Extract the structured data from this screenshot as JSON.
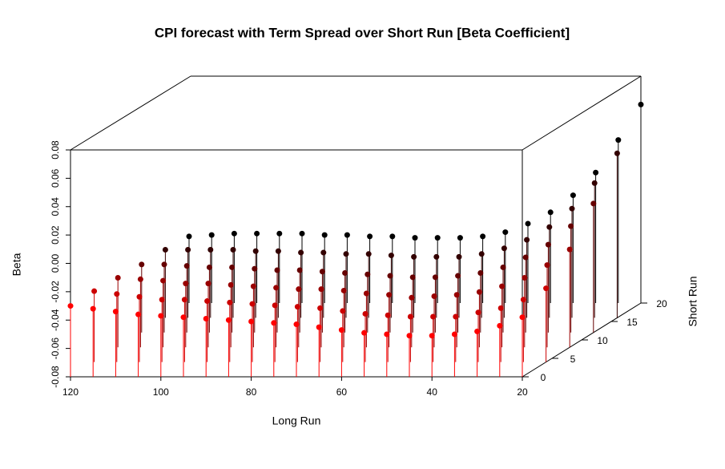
{
  "chart_data": {
    "type": "scatter3d",
    "title": "CPI forecast with Term Spread over Short Run [Beta Coefficient]",
    "xlabel": "Long Run",
    "ylabel": "Short Run",
    "zlabel": "Beta",
    "x": [
      120,
      115,
      110,
      105,
      100,
      95,
      90,
      85,
      80,
      75,
      70,
      65,
      60,
      55,
      50,
      45,
      40,
      35,
      30,
      25,
      20
    ],
    "xlim": [
      120,
      20
    ],
    "xticks": [
      120,
      100,
      80,
      60,
      40,
      20
    ],
    "ylim": [
      0,
      20
    ],
    "yticks": [
      0,
      5,
      10,
      15,
      20
    ],
    "zlim": [
      -0.08,
      0.08
    ],
    "zticks": [
      -0.08,
      -0.06,
      -0.04,
      -0.02,
      {
        "value": 0,
        "label": "0.00"
      },
      0.02,
      0.04,
      0.06,
      0.08
    ],
    "series": [
      {
        "y": 0,
        "color": "#ff0000",
        "values": [
          -0.03,
          -0.032,
          -0.034,
          -0.036,
          -0.037,
          -0.038,
          -0.039,
          -0.04,
          -0.041,
          -0.042,
          -0.043,
          -0.045,
          -0.047,
          -0.049,
          -0.05,
          -0.051,
          -0.051,
          -0.05,
          -0.048,
          -0.044,
          -0.038
        ]
      },
      {
        "y": 4,
        "color": "#cc0000",
        "values": [
          -0.03,
          -0.032,
          -0.034,
          -0.036,
          -0.036,
          -0.037,
          -0.038,
          -0.039,
          -0.04,
          -0.041,
          -0.042,
          -0.044,
          -0.046,
          -0.047,
          -0.048,
          -0.048,
          -0.048,
          -0.045,
          -0.042,
          -0.036,
          -0.028
        ]
      },
      {
        "y": 8,
        "color": "#990000",
        "values": [
          -0.031,
          -0.032,
          -0.033,
          -0.035,
          -0.035,
          -0.036,
          -0.037,
          -0.038,
          -0.039,
          -0.039,
          -0.04,
          -0.042,
          -0.043,
          -0.045,
          -0.044,
          -0.043,
          -0.041,
          -0.037,
          -0.031,
          -0.022,
          -0.011
        ]
      },
      {
        "y": 12,
        "color": "#660000",
        "values": [
          -0.032,
          -0.032,
          -0.033,
          -0.034,
          -0.034,
          -0.035,
          -0.036,
          -0.036,
          -0.037,
          -0.038,
          -0.039,
          -0.04,
          -0.041,
          -0.041,
          -0.04,
          -0.038,
          -0.034,
          -0.027,
          -0.018,
          -0.005,
          0.011
        ]
      },
      {
        "y": 16,
        "color": "#330000",
        "values": [
          -0.032,
          -0.032,
          -0.032,
          -0.032,
          -0.033,
          -0.033,
          -0.034,
          -0.034,
          -0.035,
          -0.035,
          -0.036,
          -0.037,
          -0.037,
          -0.037,
          -0.035,
          -0.031,
          -0.025,
          -0.016,
          -0.003,
          0.015,
          0.036
        ]
      },
      {
        "y": 20,
        "color": "#000000",
        "values": [
          -0.033,
          -0.032,
          -0.031,
          -0.031,
          -0.031,
          -0.031,
          -0.032,
          -0.032,
          -0.033,
          -0.033,
          -0.034,
          -0.034,
          -0.034,
          -0.033,
          -0.03,
          -0.024,
          -0.016,
          -0.004,
          0.012,
          0.035,
          0.06
        ]
      }
    ]
  }
}
